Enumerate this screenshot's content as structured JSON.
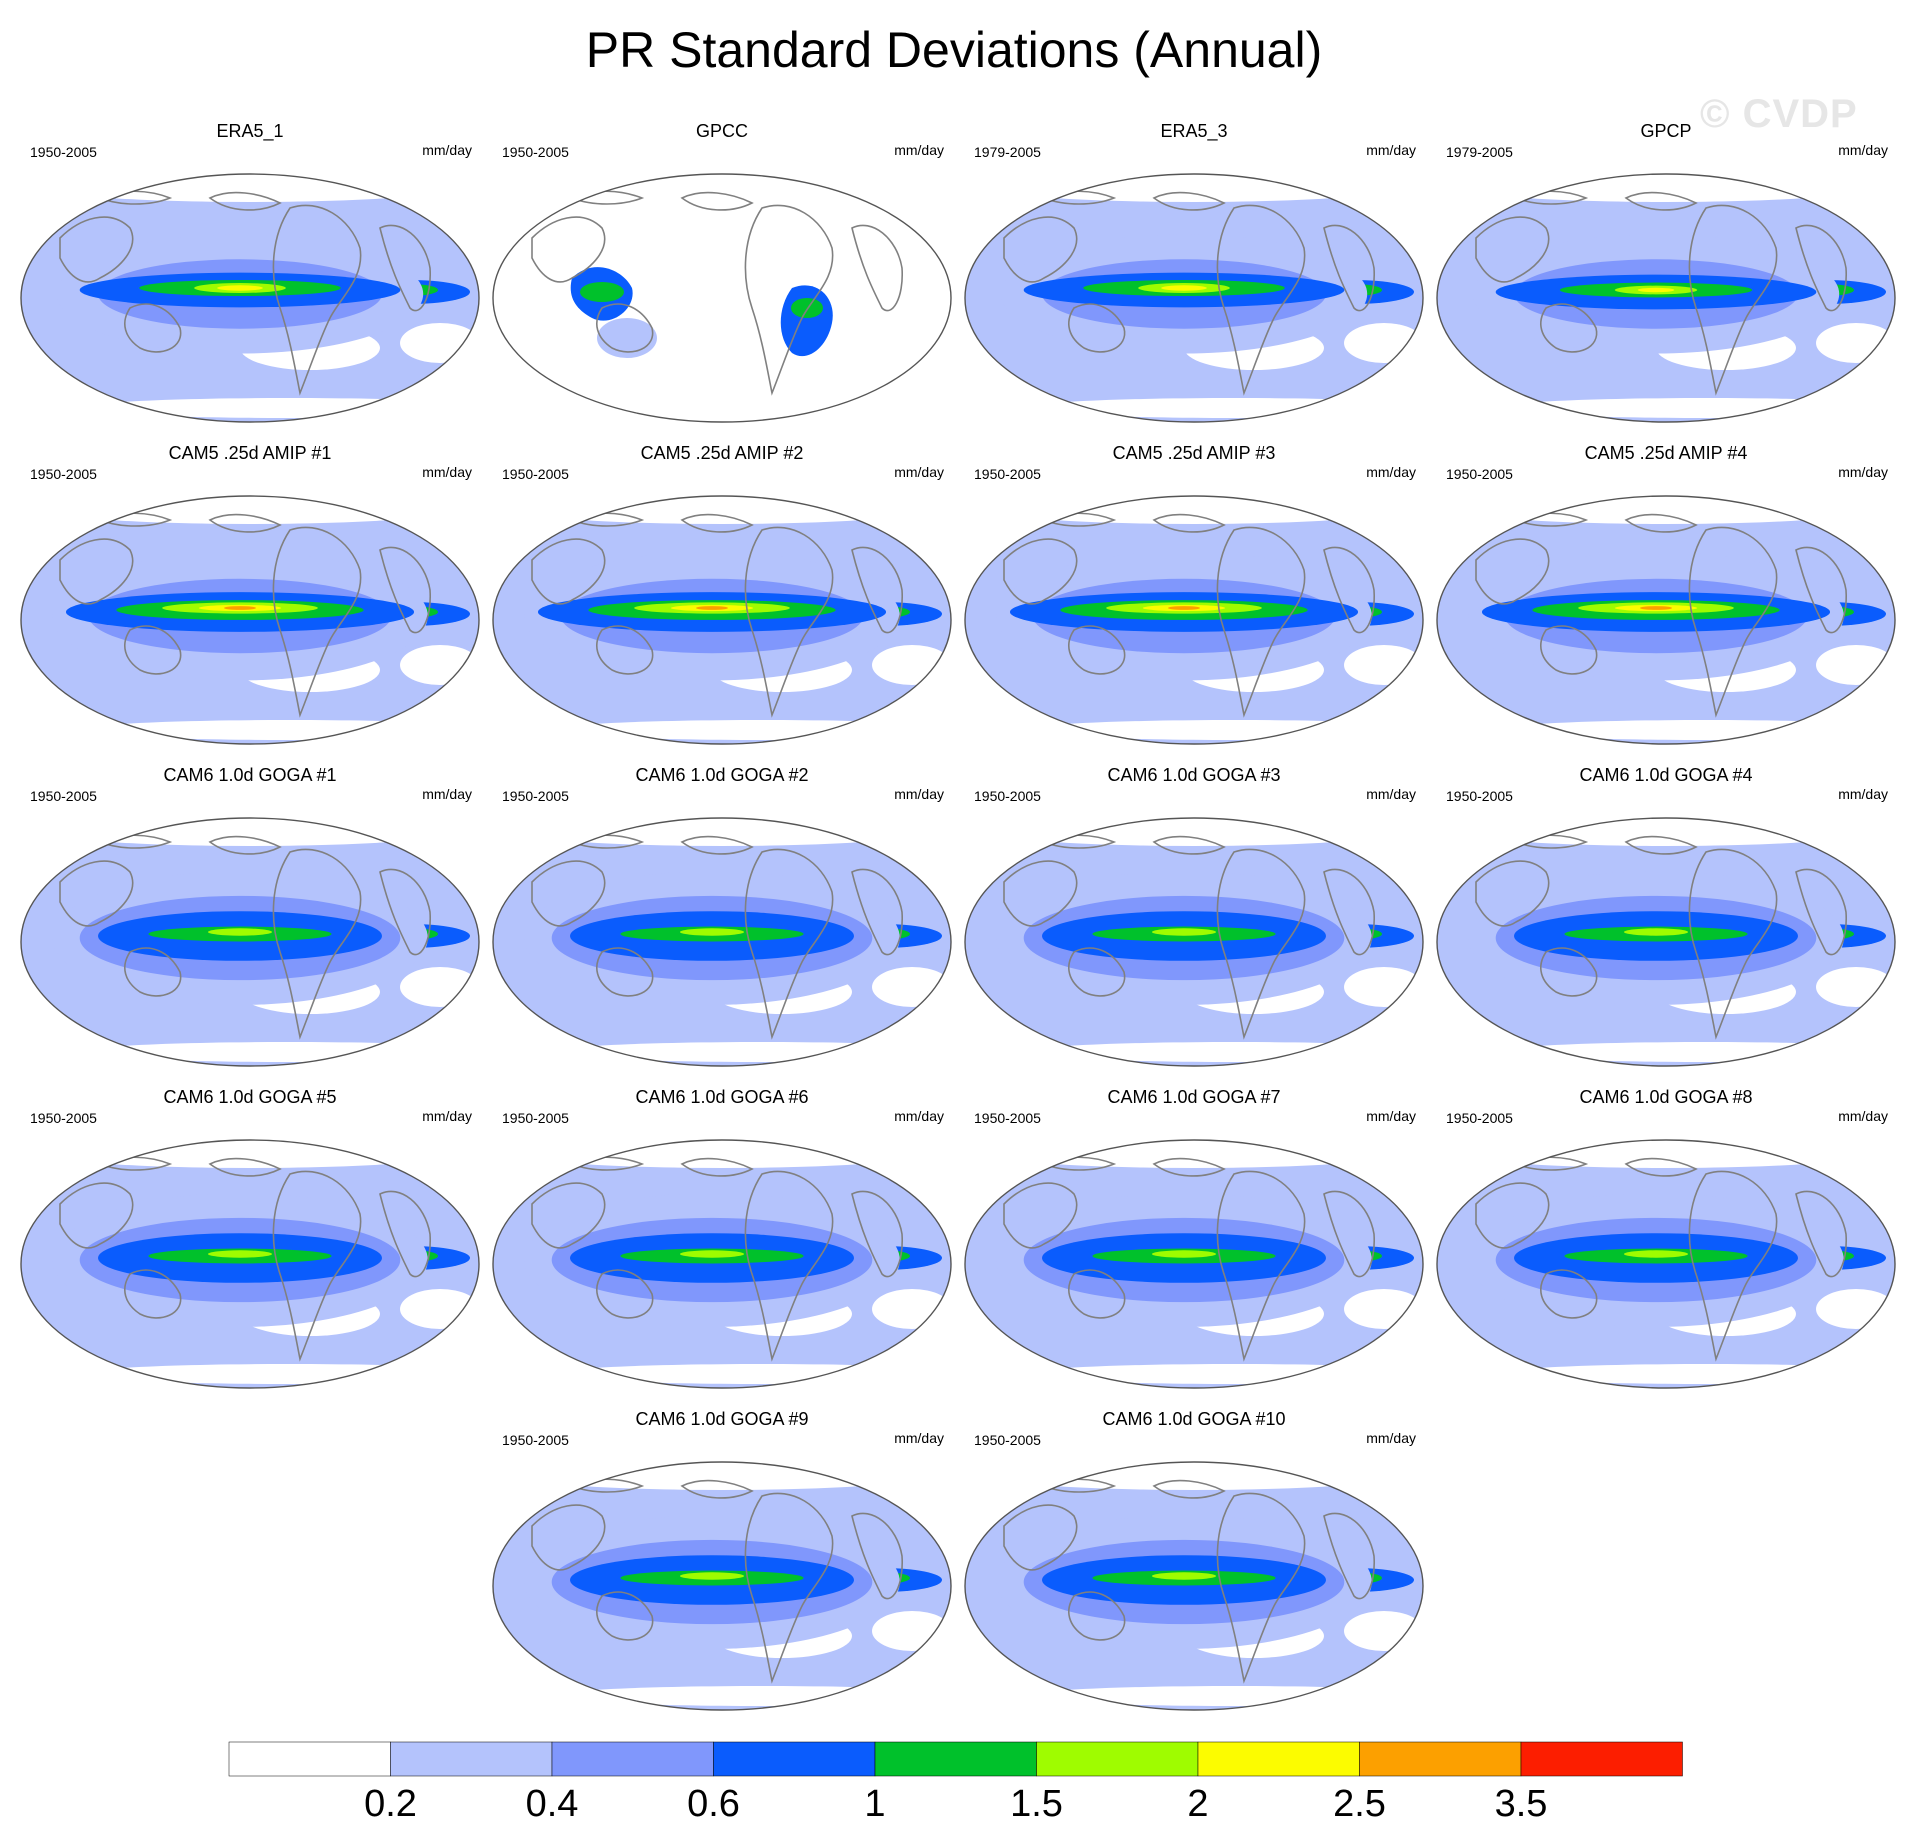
{
  "title": "PR Standard Deviations (Annual)",
  "watermark": "© CVDP",
  "units": "mm/day",
  "panels": [
    {
      "title": "ERA5_1",
      "period": "1950-2005",
      "kind": "era"
    },
    {
      "title": "GPCC",
      "period": "1950-2005",
      "kind": "gpcc"
    },
    {
      "title": "ERA5_3",
      "period": "1979-2005",
      "kind": "era"
    },
    {
      "title": "GPCP",
      "period": "1979-2005",
      "kind": "gpcp"
    },
    {
      "title": "CAM5 .25d AMIP #1",
      "period": "1950-2005",
      "kind": "cam5"
    },
    {
      "title": "CAM5 .25d AMIP #2",
      "period": "1950-2005",
      "kind": "cam5"
    },
    {
      "title": "CAM5 .25d AMIP #3",
      "period": "1950-2005",
      "kind": "cam5"
    },
    {
      "title": "CAM5 .25d AMIP #4",
      "period": "1950-2005",
      "kind": "cam5"
    },
    {
      "title": "CAM6 1.0d GOGA #1",
      "period": "1950-2005",
      "kind": "cam6"
    },
    {
      "title": "CAM6 1.0d GOGA #2",
      "period": "1950-2005",
      "kind": "cam6"
    },
    {
      "title": "CAM6 1.0d GOGA #3",
      "period": "1950-2005",
      "kind": "cam6"
    },
    {
      "title": "CAM6 1.0d GOGA #4",
      "period": "1950-2005",
      "kind": "cam6"
    },
    {
      "title": "CAM6 1.0d GOGA #5",
      "period": "1950-2005",
      "kind": "cam6"
    },
    {
      "title": "CAM6 1.0d GOGA #6",
      "period": "1950-2005",
      "kind": "cam6"
    },
    {
      "title": "CAM6 1.0d GOGA #7",
      "period": "1950-2005",
      "kind": "cam6"
    },
    {
      "title": "CAM6 1.0d GOGA #8",
      "period": "1950-2005",
      "kind": "cam6"
    },
    {
      "title": "CAM6 1.0d GOGA #9",
      "period": "1950-2005",
      "kind": "cam6"
    },
    {
      "title": "CAM6 1.0d GOGA #10",
      "period": "1950-2005",
      "kind": "cam6"
    }
  ],
  "chart_data": {
    "type": "heatmap",
    "title": "PR Standard Deviations (Annual)",
    "units": "mm/day",
    "projection": "Robinson, Pacific-centered",
    "colorbar": {
      "levels": [
        "0.2",
        "0.4",
        "0.6",
        "1",
        "1.5",
        "2",
        "2.5",
        "3.5"
      ],
      "colors": [
        "#ffffff",
        "#b4c3fc",
        "#8097fc",
        "#0a5cfd",
        "#00c12b",
        "#9ffc00",
        "#fcfc00",
        "#fca000",
        "#fc1e00"
      ]
    }
  },
  "colors": {
    "coast": "#808080",
    "outline": "#555555"
  }
}
